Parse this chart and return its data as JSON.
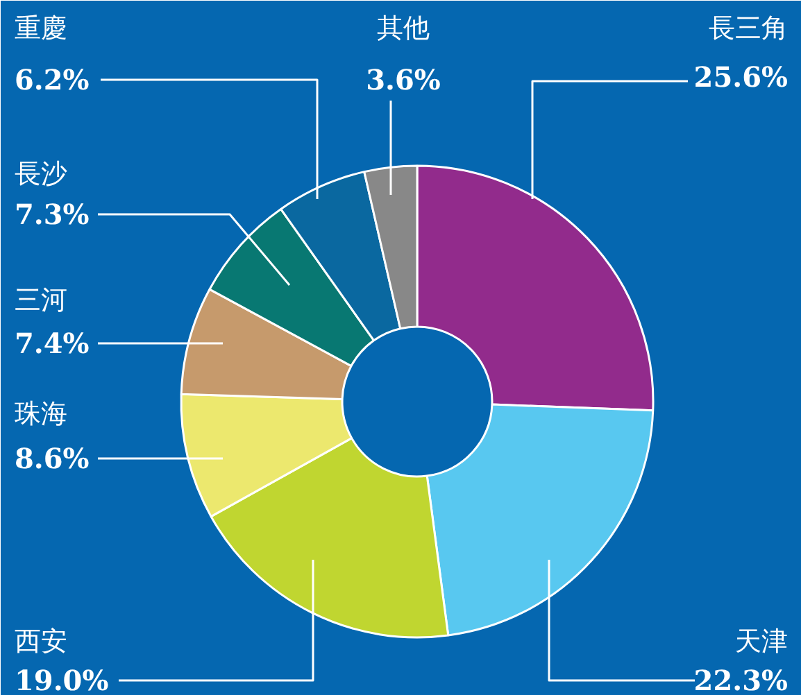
{
  "chart_data": {
    "type": "donut",
    "categories": [
      "長三角",
      "天津",
      "西安",
      "珠海",
      "三河",
      "長沙",
      "重慶",
      "其他"
    ],
    "values": [
      25.6,
      22.3,
      19.0,
      8.6,
      7.4,
      7.3,
      6.2,
      3.6
    ],
    "value_labels": [
      "25.6%",
      "22.3%",
      "19.0%",
      "8.6%",
      "7.4%",
      "7.3%",
      "6.2%",
      "3.6%"
    ],
    "colors": [
      "#922b8c",
      "#58c8f0",
      "#c0d630",
      "#ece86e",
      "#c69a6c",
      "#087872",
      "#0a68a0",
      "#888888"
    ]
  }
}
